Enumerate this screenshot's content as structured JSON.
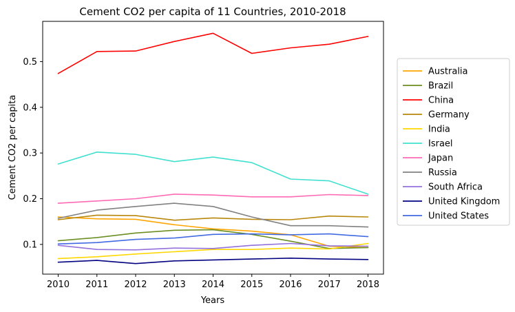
{
  "chart_data": {
    "type": "line",
    "title": "Cement CO2 per capita of 11 Countries, 2010-2018",
    "xlabel": "Years",
    "ylabel": "Cement CO2 per capita",
    "x": [
      2010,
      2011,
      2012,
      2013,
      2014,
      2015,
      2016,
      2017,
      2018
    ],
    "x_ticks": [
      "2010",
      "2011",
      "2012",
      "2013",
      "2014",
      "2015",
      "2016",
      "2017",
      "2018"
    ],
    "y_ticks": [
      "0.1",
      "0.2",
      "0.3",
      "0.4",
      "0.5"
    ],
    "y_tick_values": [
      0.1,
      0.2,
      0.3,
      0.4,
      0.5
    ],
    "xlim": [
      2009.6,
      2018.4
    ],
    "ylim": [
      0.035,
      0.588
    ],
    "grid": false,
    "legend_position": "right",
    "series": [
      {
        "name": "Australia",
        "color": "#FFA500",
        "values": [
          0.16,
          0.156,
          0.155,
          0.143,
          0.134,
          0.129,
          0.121,
          0.096,
          0.093
        ]
      },
      {
        "name": "Brazil",
        "color": "#6B8E23",
        "values": [
          0.108,
          0.115,
          0.125,
          0.131,
          0.132,
          0.122,
          0.107,
          0.091,
          0.093
        ]
      },
      {
        "name": "China",
        "color": "#FF0000",
        "values": [
          0.474,
          0.522,
          0.523,
          0.544,
          0.562,
          0.518,
          0.53,
          0.538,
          0.555
        ]
      },
      {
        "name": "Germany",
        "color": "#B8860B",
        "values": [
          0.154,
          0.164,
          0.163,
          0.153,
          0.158,
          0.155,
          0.154,
          0.162,
          0.16
        ]
      },
      {
        "name": "India",
        "color": "#FFD700",
        "values": [
          0.069,
          0.073,
          0.079,
          0.084,
          0.089,
          0.089,
          0.092,
          0.09,
          0.102
        ]
      },
      {
        "name": "Israel",
        "color": "#40E0D0",
        "values": [
          0.276,
          0.302,
          0.297,
          0.281,
          0.291,
          0.279,
          0.243,
          0.239,
          0.21
        ]
      },
      {
        "name": "Japan",
        "color": "#FF69B4",
        "values": [
          0.19,
          0.195,
          0.2,
          0.21,
          0.208,
          0.204,
          0.204,
          0.209,
          0.207
        ]
      },
      {
        "name": "Russia",
        "color": "#808080",
        "values": [
          0.157,
          0.175,
          0.183,
          0.19,
          0.183,
          0.16,
          0.141,
          0.141,
          0.138
        ]
      },
      {
        "name": "South Africa",
        "color": "#9370DB",
        "values": [
          0.098,
          0.089,
          0.088,
          0.092,
          0.091,
          0.098,
          0.102,
          0.097,
          0.096
        ]
      },
      {
        "name": "United Kingdom",
        "color": "#000080",
        "values": [
          0.061,
          0.065,
          0.058,
          0.064,
          0.066,
          0.068,
          0.07,
          0.068,
          0.067
        ]
      },
      {
        "name": "United States",
        "color": "#4169E1",
        "values": [
          0.101,
          0.104,
          0.111,
          0.114,
          0.122,
          0.123,
          0.121,
          0.123,
          0.117
        ]
      }
    ]
  }
}
